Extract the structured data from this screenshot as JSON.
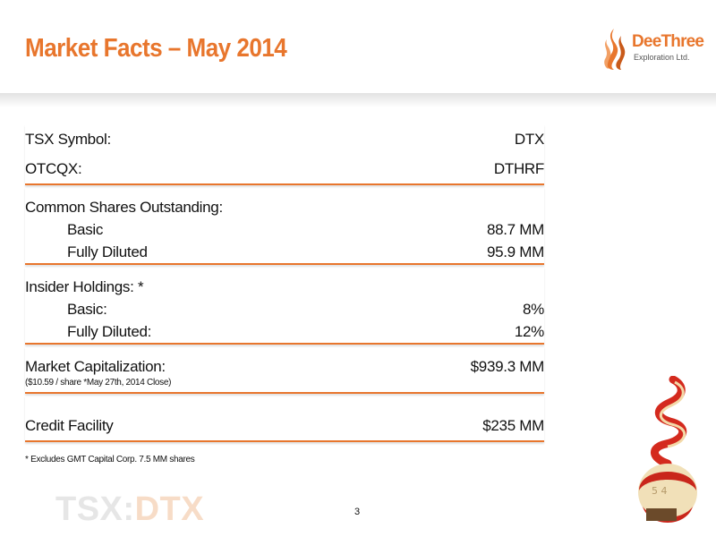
{
  "header": {
    "title": "Market Facts – May 2014",
    "logo": {
      "name": "DeeThree",
      "subtitle": "Exploration Ltd."
    }
  },
  "sections": [
    {
      "rows": [
        {
          "label": "TSX Symbol:",
          "value": "DTX"
        },
        {
          "label": "OTCQX:",
          "value": "DTHRF"
        }
      ]
    },
    {
      "rows": [
        {
          "label": "Common Shares Outstanding:"
        },
        {
          "label": "Basic",
          "value": "88.7 MM",
          "indent": true
        },
        {
          "label": "Fully Diluted",
          "value": "95.9 MM",
          "indent": true
        }
      ]
    },
    {
      "rows": [
        {
          "label": "Insider Holdings: *"
        },
        {
          "label": "Basic:",
          "value": "8%",
          "indent": true
        },
        {
          "label": "Fully Diluted:",
          "value": "12%",
          "indent": true
        }
      ]
    },
    {
      "rows": [
        {
          "label": "Market Capitalization:",
          "value": "$939.3 MM"
        }
      ],
      "note": "($10.59 / share *May 27th, 2014 Close)"
    },
    {
      "rows": [
        {
          "label": "Credit Facility",
          "value": "$235 MM"
        }
      ]
    }
  ],
  "footnote": "* Excludes GMT Capital Corp. 7.5 MM shares",
  "watermark": {
    "exchange": "TSX:",
    "symbol": "DTX"
  },
  "page_number": "3"
}
